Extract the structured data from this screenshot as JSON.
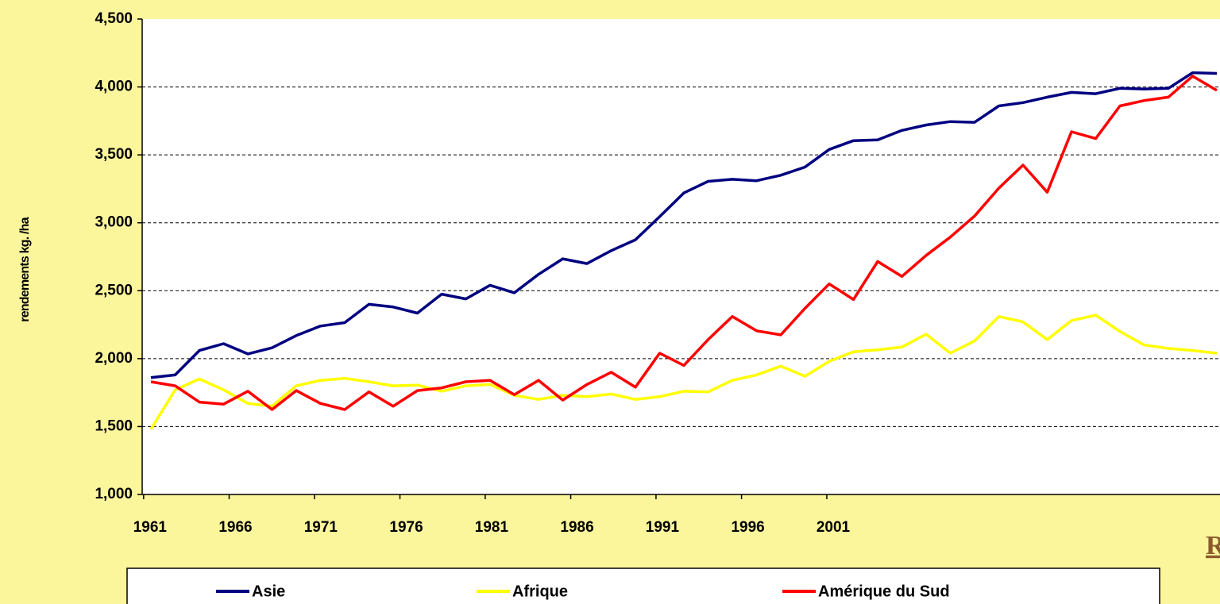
{
  "chart_data": {
    "type": "line",
    "y_label": "rendements kg. /ha",
    "x": [
      1961,
      1962,
      1963,
      1964,
      1965,
      1966,
      1967,
      1968,
      1969,
      1970,
      1971,
      1972,
      1973,
      1974,
      1975,
      1976,
      1977,
      1978,
      1979,
      1980,
      1981,
      1982,
      1983,
      1984,
      1985,
      1986,
      1987,
      1988,
      1989,
      1990,
      1991,
      1992,
      1993,
      1994,
      1995,
      1996,
      1997,
      1998,
      1999,
      2000,
      2001,
      2002,
      2003,
      2004,
      2005
    ],
    "series": [
      {
        "name": "Asie",
        "color": "#000080",
        "values": [
          1860,
          1880,
          2060,
          2110,
          2035,
          2080,
          2170,
          2240,
          2265,
          2400,
          2380,
          2335,
          2475,
          2440,
          2540,
          2485,
          2620,
          2735,
          2700,
          2795,
          2875,
          3045,
          3220,
          3305,
          3320,
          3310,
          3350,
          3410,
          3540,
          3605,
          3610,
          3680,
          3720,
          3745,
          3740,
          3860,
          3885,
          3925,
          3960,
          3950,
          3990,
          3985,
          3990,
          4105,
          4100
        ]
      },
      {
        "name": "Afrique",
        "color": "#ffff00",
        "values": [
          1480,
          1770,
          1850,
          1770,
          1670,
          1650,
          1800,
          1840,
          1855,
          1830,
          1800,
          1805,
          1760,
          1800,
          1810,
          1730,
          1700,
          1730,
          1720,
          1740,
          1700,
          1720,
          1760,
          1755,
          1840,
          1880,
          1945,
          1870,
          1980,
          2050,
          2065,
          2085,
          2180,
          2040,
          2130,
          2310,
          2270,
          2140,
          2280,
          2320,
          2200,
          2100,
          2075,
          2060,
          2040
        ]
      },
      {
        "name": "Amérique du Sud",
        "color": "#ff0000",
        "values": [
          1830,
          1800,
          1680,
          1665,
          1760,
          1625,
          1765,
          1670,
          1625,
          1755,
          1650,
          1765,
          1785,
          1830,
          1840,
          1735,
          1840,
          1695,
          1810,
          1900,
          1790,
          2040,
          1950,
          2140,
          2310,
          2205,
          2175,
          2370,
          2550,
          2435,
          2715,
          2605,
          2760,
          2895,
          3050,
          3255,
          3425,
          3225,
          3670,
          3620,
          3860,
          3900,
          3925,
          4080,
          3975
        ]
      }
    ],
    "xlim": [
      1960.64,
      2005.13
    ],
    "xticks": [
      {
        "value": 1960.7,
        "label": "1961"
      },
      {
        "value": 1964.23,
        "label": "1966"
      },
      {
        "value": 1967.75,
        "label": "1971"
      },
      {
        "value": 1971.28,
        "label": "1976"
      },
      {
        "value": 1974.8,
        "label": "1981"
      },
      {
        "value": 1978.33,
        "label": "1986"
      },
      {
        "value": 1981.85,
        "label": "1991"
      },
      {
        "value": 1985.38,
        "label": "1996"
      },
      {
        "value": 1988.9,
        "label": "2001"
      }
    ],
    "ylim": [
      1000,
      4500
    ],
    "yticks": [
      {
        "value": 1000,
        "label": "1,000"
      },
      {
        "value": 1500,
        "label": "1,500"
      },
      {
        "value": 2000,
        "label": "2,000"
      },
      {
        "value": 2500,
        "label": "2,500"
      },
      {
        "value": 3000,
        "label": "3,000"
      },
      {
        "value": 3500,
        "label": "3,500"
      },
      {
        "value": 4000,
        "label": "4,000"
      },
      {
        "value": 4500,
        "label": "4,500"
      }
    ],
    "grid": true,
    "legend": "bottom"
  },
  "link_text": "R"
}
